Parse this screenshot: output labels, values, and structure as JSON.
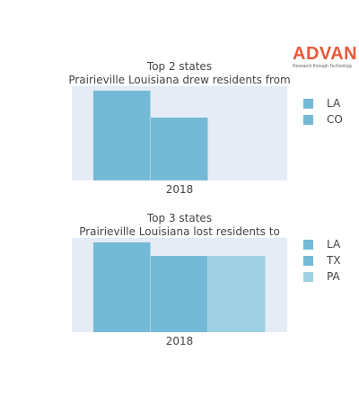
{
  "logo": {
    "word": "ADVAN",
    "tagline": "Research through Technology",
    "color": "#e8593a"
  },
  "colors": {
    "plot_bg": "#e5ecf6",
    "bar_primary": "#74bad6",
    "bar_light": "#9ecfe2"
  },
  "chart_data": [
    {
      "type": "bar",
      "title": "Top 2 states",
      "subtitle": "Prairieville Louisiana drew residents from",
      "categories": [
        "2018"
      ],
      "series": [
        {
          "name": "LA",
          "values": [
            1.0
          ],
          "color": "#74bad6"
        },
        {
          "name": "CO",
          "values": [
            0.7
          ],
          "color": "#74bad6"
        }
      ],
      "ylim": [
        0,
        1.05
      ],
      "grid": false,
      "legend": "right"
    },
    {
      "type": "bar",
      "title": "Top 3 states",
      "subtitle": "Prairieville Louisiana lost residents to",
      "categories": [
        "2018"
      ],
      "series": [
        {
          "name": "LA",
          "values": [
            1.0
          ],
          "color": "#74bad6"
        },
        {
          "name": "TX",
          "values": [
            0.85
          ],
          "color": "#74bad6"
        },
        {
          "name": "PA",
          "values": [
            0.85
          ],
          "color": "#9ecfe2"
        }
      ],
      "ylim": [
        0,
        1.05
      ],
      "grid": false,
      "legend": "right"
    }
  ]
}
